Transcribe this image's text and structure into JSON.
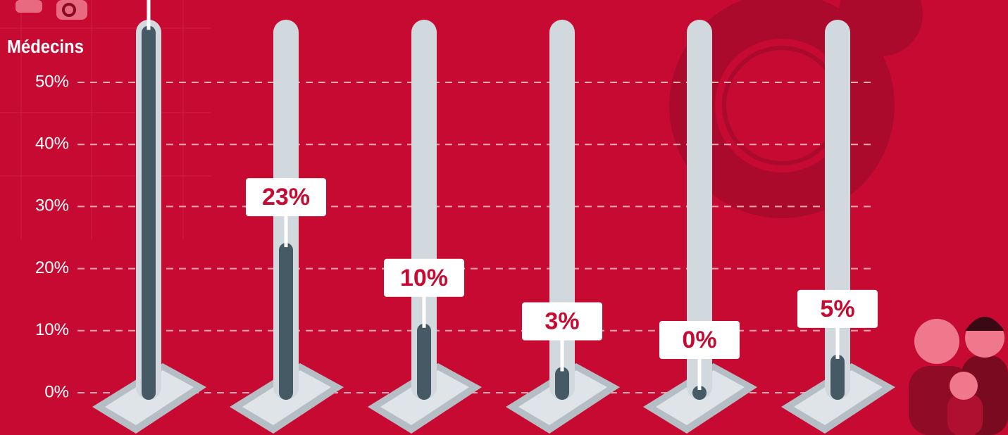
{
  "chart_data": {
    "type": "thermometer",
    "title": "Médecins",
    "categories": [
      null,
      null,
      null,
      null,
      null,
      null
    ],
    "values": [
      58,
      23,
      10,
      3,
      0,
      5
    ],
    "value_labels": [
      null,
      "23%",
      "10%",
      "3%",
      "0%",
      "5%"
    ],
    "color": "#455a64",
    "track_color": "#d2d9de",
    "background": "#c60a32",
    "ylim": [
      0,
      60
    ],
    "yticks": [
      {
        "value": 0,
        "label": "0%"
      },
      {
        "value": 10,
        "label": "10%"
      },
      {
        "value": 20,
        "label": "20%"
      },
      {
        "value": 30,
        "label": "30%"
      },
      {
        "value": 40,
        "label": "40%"
      },
      {
        "value": 50,
        "label": "50%"
      }
    ],
    "grid": true
  }
}
